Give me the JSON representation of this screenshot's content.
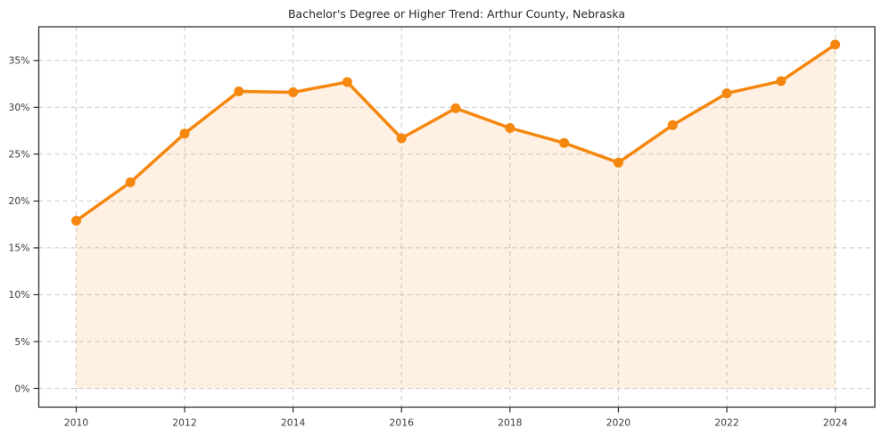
{
  "chart_data": {
    "type": "line",
    "title": "Bachelor's Degree or Higher Trend: Arthur County, Nebraska",
    "x": [
      2010,
      2011,
      2012,
      2013,
      2014,
      2015,
      2016,
      2017,
      2018,
      2019,
      2020,
      2021,
      2022,
      2023,
      2024
    ],
    "series": [
      {
        "name": "Bachelor's Degree or Higher (%)",
        "values": [
          17.9,
          22.0,
          27.2,
          31.7,
          31.6,
          32.7,
          26.7,
          29.9,
          27.8,
          26.2,
          24.1,
          28.1,
          31.5,
          32.8,
          36.7
        ]
      }
    ],
    "unit": "%",
    "xlabel": "",
    "ylabel": "",
    "xticks": [
      2010,
      2012,
      2014,
      2016,
      2018,
      2020,
      2022,
      2024
    ],
    "xtick_labels": [
      "2010",
      "2012",
      "2014",
      "2016",
      "2018",
      "2020",
      "2022",
      "2024"
    ],
    "yticks": [
      0,
      5,
      10,
      15,
      20,
      25,
      30,
      35
    ],
    "ytick_labels": [
      "0%",
      "5%",
      "10%",
      "15%",
      "20%",
      "25%",
      "30%",
      "35%"
    ],
    "xlim": [
      2009.31,
      2024.73
    ],
    "ylim": [
      -2.0,
      38.6
    ],
    "fill_baseline": 0,
    "grid": "both, dashed",
    "legend_position": "none",
    "colors": {
      "line": "#f5870f",
      "marker": "#f5870f",
      "area_fill": "#f5870f",
      "area_fill_opacity": "0.12",
      "grid": "#c9c9c9",
      "spine": "#2f2f2f",
      "tick_text": "#3c3c3c",
      "title_text": "#262626",
      "background": "#ffffff"
    }
  }
}
